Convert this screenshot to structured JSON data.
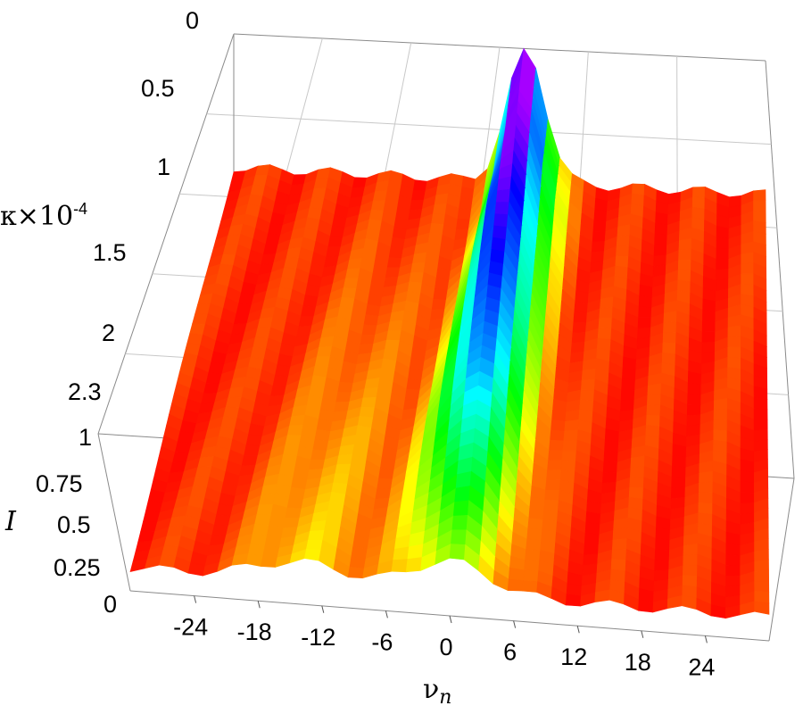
{
  "chart_data": {
    "type": "surface",
    "title": "",
    "axes": {
      "kappa": {
        "label": "κ×10",
        "label_exponent": "-4",
        "ticks": [
          "0",
          "0.5",
          "1",
          "1.5",
          "2",
          "2.3"
        ],
        "range": [
          0,
          2.3
        ],
        "direction": "depth (front to back, 2.3 nearest)"
      },
      "intensity": {
        "label": "I",
        "ticks": [
          "0",
          "0.25",
          "0.5",
          "0.75",
          "1"
        ],
        "range": [
          0,
          1
        ]
      },
      "nu": {
        "label": "ν",
        "label_subscript": "n",
        "ticks": [
          "-24",
          "-18",
          "-12",
          "-6",
          "0",
          "6",
          "12",
          "18",
          "24"
        ],
        "range": [
          -30,
          30
        ]
      }
    },
    "colormap": "hue (red = low, through yellow, green, cyan, blue, magenta = high)",
    "grid": true,
    "annotations": [],
    "surface_summary": {
      "peak_center_nu": [
        0,
        0.6,
        1.2,
        1.8,
        2.4,
        3.0
      ],
      "peak_center_kappa": [
        2.3,
        1.9,
        1.5,
        1.1,
        0.6,
        0.3
      ],
      "peak_height": [
        0.35,
        0.55,
        0.75,
        0.85,
        0.95,
        1.0
      ],
      "background_level": 0.15
    }
  }
}
